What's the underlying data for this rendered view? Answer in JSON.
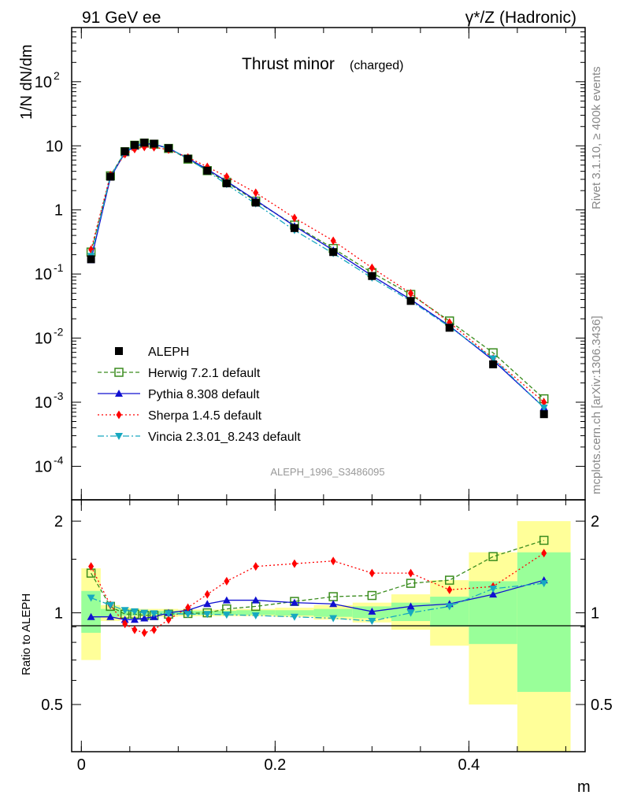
{
  "header": {
    "left": "91 GeV ee",
    "right": "γ*/Z (Hadronic)"
  },
  "side_text": {
    "rivet": "Rivet 3.1.10, ≥ 400k events",
    "mcplots": "mcplots.cern.ch [arXiv:1306.3436]"
  },
  "main_panel": {
    "title": "Thrust minor",
    "title_sub": "(charged)",
    "ylabel": "1/N dN/dm",
    "watermark": "ALEPH_1996_S3486095",
    "y_ticks": [
      {
        "exp": "-4",
        "label": "10",
        "value": 0.0001
      },
      {
        "exp": "-3",
        "label": "10",
        "value": 0.001
      },
      {
        "exp": "-2",
        "label": "10",
        "value": 0.01
      },
      {
        "exp": "-1",
        "label": "10",
        "value": 0.1
      },
      {
        "exp": "",
        "label": "1",
        "value": 1
      },
      {
        "exp": "",
        "label": "10",
        "value": 10
      },
      {
        "exp": "2",
        "label": "10",
        "value": 100
      }
    ]
  },
  "ratio_panel": {
    "ylabel": "Ratio to ALEPH",
    "y_ticks": [
      "0.5",
      "1",
      "2"
    ]
  },
  "x_axis": {
    "label": "m",
    "ticks": [
      "0",
      "0.2",
      "0.4"
    ]
  },
  "legend": [
    {
      "name": "ALEPH",
      "color": "#000000",
      "marker": "square"
    },
    {
      "name": "Herwig 7.2.1 default",
      "color": "#3a8c1e",
      "marker": "open-square"
    },
    {
      "name": "Pythia 8.308 default",
      "color": "#1010d0",
      "marker": "triangle-up"
    },
    {
      "name": "Sherpa 1.4.5 default",
      "color": "#ff0000",
      "marker": "diamond"
    },
    {
      "name": "Vincia 2.3.01_8.243 default",
      "color": "#17a8c0",
      "marker": "triangle-down"
    }
  ],
  "chart_data": {
    "type": "line",
    "title": "Thrust minor (charged)",
    "xlabel": "m",
    "ylabel": "1/N dN/dm",
    "xlim": [
      -0.01,
      0.52
    ],
    "ylim": [
      3e-05,
      700
    ],
    "ratio_ylim": [
      0.35,
      2.35
    ],
    "x": [
      0.01,
      0.03,
      0.045,
      0.055,
      0.065,
      0.075,
      0.09,
      0.11,
      0.13,
      0.15,
      0.18,
      0.22,
      0.26,
      0.3,
      0.34,
      0.38,
      0.425,
      0.4775
    ],
    "data": {
      "name": "ALEPH",
      "values": [
        0.17,
        3.3,
        8.2,
        10.3,
        11.2,
        10.8,
        9.2,
        6.3,
        4.1,
        2.6,
        1.3,
        0.52,
        0.22,
        0.093,
        0.038,
        0.0145,
        0.0039,
        0.00065
      ],
      "band_edges": [
        0.0,
        0.02,
        0.04,
        0.05,
        0.06,
        0.07,
        0.08,
        0.1,
        0.12,
        0.14,
        0.16,
        0.2,
        0.24,
        0.28,
        0.32,
        0.36,
        0.4,
        0.45,
        0.505
      ],
      "stat_lo": [
        0.86,
        0.97,
        0.98,
        0.98,
        0.985,
        0.985,
        0.985,
        0.985,
        0.985,
        0.985,
        0.985,
        0.98,
        0.97,
        0.96,
        0.94,
        0.9,
        0.79,
        0.55
      ],
      "stat_hi": [
        1.18,
        1.03,
        1.02,
        1.02,
        1.015,
        1.015,
        1.015,
        1.015,
        1.015,
        1.015,
        1.02,
        1.02,
        1.03,
        1.05,
        1.08,
        1.13,
        1.27,
        1.58
      ],
      "tot_lo": [
        0.7,
        0.94,
        0.96,
        0.965,
        0.97,
        0.97,
        0.97,
        0.975,
        0.975,
        0.975,
        0.975,
        0.97,
        0.95,
        0.93,
        0.88,
        0.78,
        0.5,
        0.35
      ],
      "tot_hi": [
        1.4,
        1.06,
        1.04,
        1.035,
        1.03,
        1.03,
        1.03,
        1.025,
        1.025,
        1.025,
        1.03,
        1.04,
        1.06,
        1.08,
        1.15,
        1.28,
        1.58,
        2.0
      ]
    },
    "series": [
      {
        "name": "Herwig 7.2.1 default",
        "values": [
          0.22,
          3.4,
          8.1,
          10.2,
          11.0,
          10.6,
          9.1,
          6.2,
          4.1,
          2.7,
          1.37,
          0.58,
          0.25,
          0.105,
          0.048,
          0.0185,
          0.0059,
          0.00113
        ],
        "ratio": [
          1.35,
          1.05,
          0.99,
          0.99,
          0.98,
          0.98,
          0.99,
          0.995,
          1.0,
          1.03,
          1.05,
          1.09,
          1.13,
          1.14,
          1.25,
          1.28,
          1.53,
          1.73
        ]
      },
      {
        "name": "Pythia 8.308 default",
        "values": [
          0.165,
          3.2,
          7.8,
          9.8,
          10.8,
          10.5,
          9.2,
          6.4,
          4.3,
          2.8,
          1.42,
          0.56,
          0.235,
          0.094,
          0.04,
          0.0155,
          0.0045,
          0.00083
        ],
        "ratio": [
          0.97,
          0.97,
          0.95,
          0.95,
          0.96,
          0.97,
          1.0,
          1.02,
          1.07,
          1.1,
          1.1,
          1.08,
          1.07,
          1.01,
          1.05,
          1.07,
          1.15,
          1.28
        ]
      },
      {
        "name": "Sherpa 1.4.5 default",
        "values": [
          0.24,
          3.5,
          7.4,
          8.9,
          9.6,
          9.5,
          8.7,
          6.6,
          4.7,
          3.3,
          1.85,
          0.75,
          0.33,
          0.125,
          0.05,
          0.0175,
          0.0048,
          0.001
        ],
        "ratio": [
          1.42,
          1.06,
          0.92,
          0.88,
          0.86,
          0.88,
          0.95,
          1.04,
          1.15,
          1.27,
          1.42,
          1.45,
          1.48,
          1.35,
          1.35,
          1.19,
          1.22,
          1.57
        ]
      },
      {
        "name": "Vincia 2.3.01_8.243 default",
        "values": [
          0.19,
          3.35,
          8.0,
          10.1,
          11.1,
          10.7,
          9.2,
          6.3,
          4.05,
          2.5,
          1.25,
          0.48,
          0.21,
          0.087,
          0.038,
          0.015,
          0.0048,
          0.00082
        ],
        "ratio": [
          1.12,
          1.06,
          1.02,
          1.01,
          1.0,
          0.995,
          0.995,
          0.99,
          0.99,
          0.985,
          0.98,
          0.97,
          0.96,
          0.94,
          1.0,
          1.05,
          1.2,
          1.25
        ]
      }
    ]
  }
}
